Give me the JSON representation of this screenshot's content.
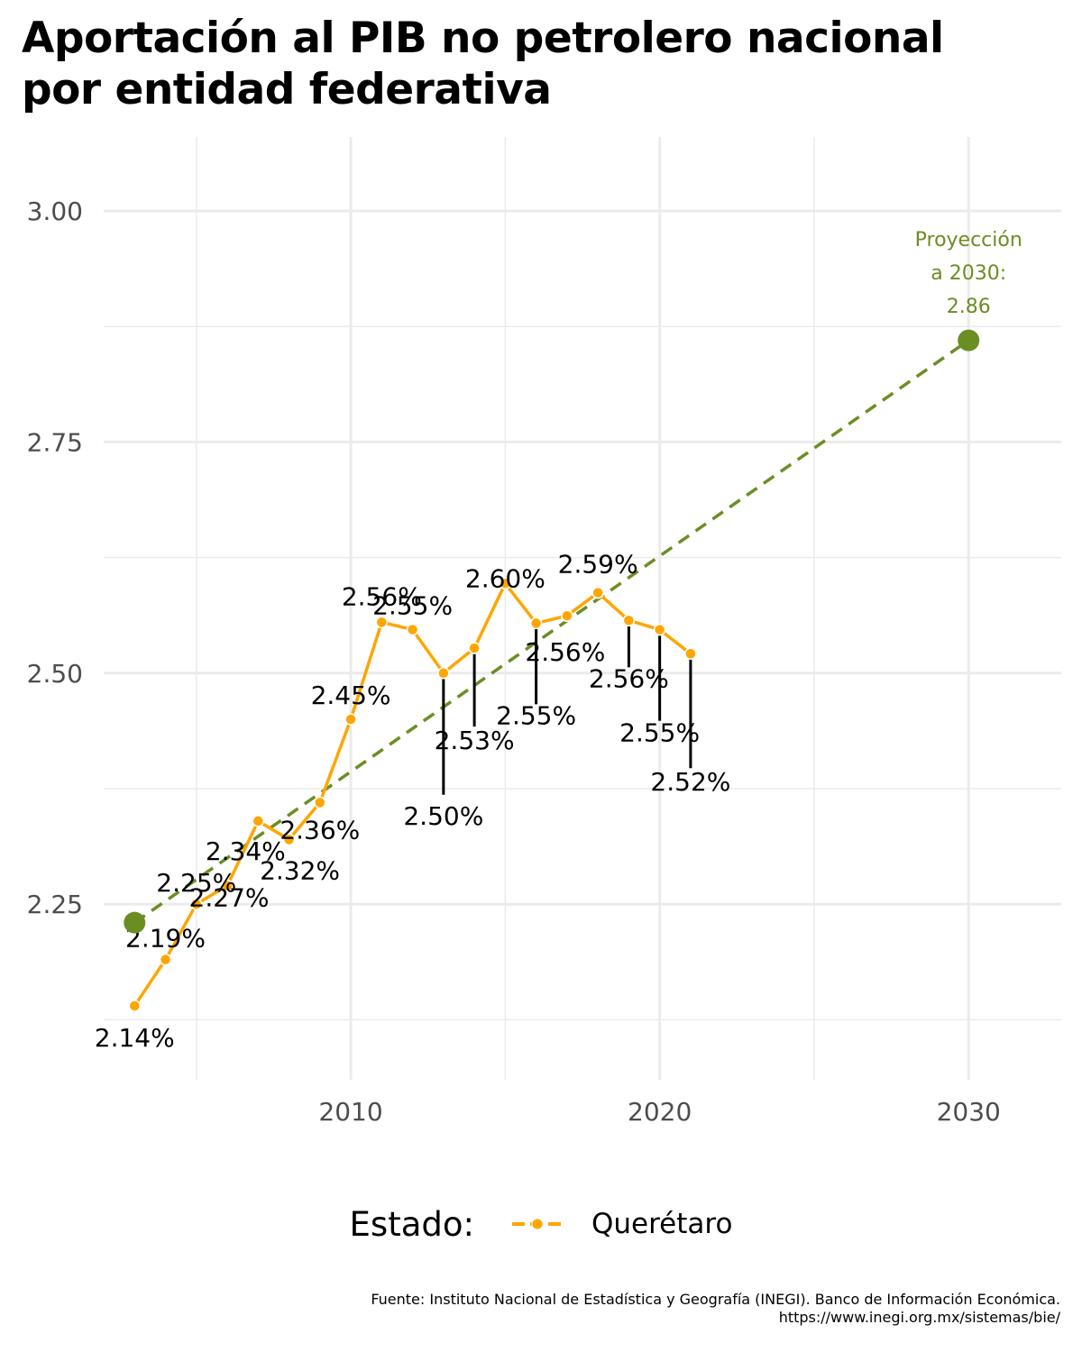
{
  "title_lines": [
    "Aportación al PIB no petrolero nacional",
    "por entidad federativa"
  ],
  "legend": {
    "title": "Estado:",
    "label": "Querétaro"
  },
  "caption_lines": [
    "Fuente: Instituto Nacional de Estadística y Geografía (INEGI). Banco de Información Económica.",
    "https://www.inegi.org.mx/sistemas/bie/"
  ],
  "colors": {
    "series": "#FFA500",
    "trend": "#6B8E23",
    "grid": "#EBEBEB",
    "axis_text": "#4D4D4D",
    "label_text": "#000000"
  },
  "chart_data": {
    "type": "line",
    "xlim": [
      2002,
      2033
    ],
    "ylim": [
      2.06,
      3.08
    ],
    "x_ticks": [
      2010,
      2020,
      2030
    ],
    "y_ticks": [
      2.25,
      2.5,
      2.75,
      3.0
    ],
    "y_tick_labels": [
      "2.25",
      "2.50",
      "2.75",
      "3.00"
    ],
    "x_tick_labels": [
      "2010",
      "2020",
      "2030"
    ],
    "grid": true,
    "legend_position": "bottom",
    "series": [
      {
        "name": "Querétaro",
        "x": [
          2003,
          2004,
          2005,
          2006,
          2007,
          2008,
          2009,
          2010,
          2011,
          2012,
          2013,
          2014,
          2015,
          2016,
          2017,
          2018,
          2019,
          2020,
          2021
        ],
        "y": [
          2.14,
          2.19,
          2.25,
          2.27,
          2.34,
          2.32,
          2.36,
          2.45,
          2.555,
          2.547,
          2.5,
          2.527,
          2.597,
          2.554,
          2.562,
          2.587,
          2.557,
          2.547,
          2.521
        ],
        "labels": [
          "2.14%",
          "2.19%",
          "2.25%",
          "2.27%",
          "2.34%",
          "2.32%",
          "2.36%",
          "2.45%",
          "2.56%",
          "2.55%",
          "2.50%",
          "2.53%",
          "2.60%",
          "2.55%",
          "2.56%",
          "2.59%",
          "2.56%",
          "2.55%",
          "2.52%"
        ]
      }
    ],
    "trend": {
      "x": [
        2003,
        2030
      ],
      "y": [
        2.23,
        2.86
      ]
    },
    "projection": {
      "x": 2030,
      "y": 2.86,
      "label_lines": [
        "Proyección",
        "a 2030:",
        "2.86"
      ]
    }
  }
}
